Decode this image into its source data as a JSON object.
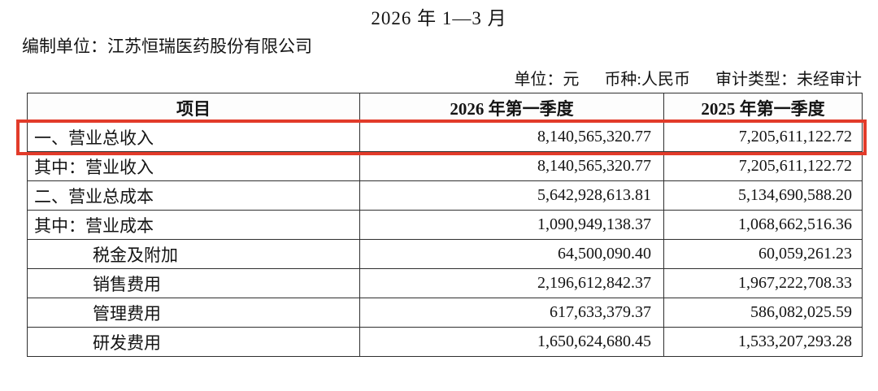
{
  "page": {
    "period_title": "2026 年 1—3 月",
    "prepared_by": "编制单位：江苏恒瑞医药股份有限公司",
    "unit_label": "单位：元",
    "currency_label": "币种:人民币",
    "audit_label": "审计类型：未经审计",
    "highlight_color": "#e23b2a"
  },
  "table": {
    "columns": [
      "项目",
      "2026 年第一季度",
      "2025 年第一季度"
    ],
    "rows": [
      {
        "item": "一、营业总收入",
        "v2026": "8,140,565,320.77",
        "v2025": "7,205,611,122.72",
        "indent": false,
        "highlighted": true
      },
      {
        "item": "其中：营业收入",
        "v2026": "8,140,565,320.77",
        "v2025": "7,205,611,122.72",
        "indent": false,
        "highlighted": false
      },
      {
        "item": "二、营业总成本",
        "v2026": "5,642,928,613.81",
        "v2025": "5,134,690,588.20",
        "indent": false,
        "highlighted": false
      },
      {
        "item": "其中：营业成本",
        "v2026": "1,090,949,138.37",
        "v2025": "1,068,662,516.36",
        "indent": false,
        "highlighted": false
      },
      {
        "item": "税金及附加",
        "v2026": "64,500,090.40",
        "v2025": "60,059,261.23",
        "indent": true,
        "highlighted": false
      },
      {
        "item": "销售费用",
        "v2026": "2,196,612,842.37",
        "v2025": "1,967,222,708.33",
        "indent": true,
        "highlighted": false
      },
      {
        "item": "管理费用",
        "v2026": "617,633,379.37",
        "v2025": "586,082,025.59",
        "indent": true,
        "highlighted": false
      },
      {
        "item": "研发费用",
        "v2026": "1,650,624,680.45",
        "v2025": "1,533,207,293.28",
        "indent": true,
        "highlighted": false
      }
    ]
  }
}
